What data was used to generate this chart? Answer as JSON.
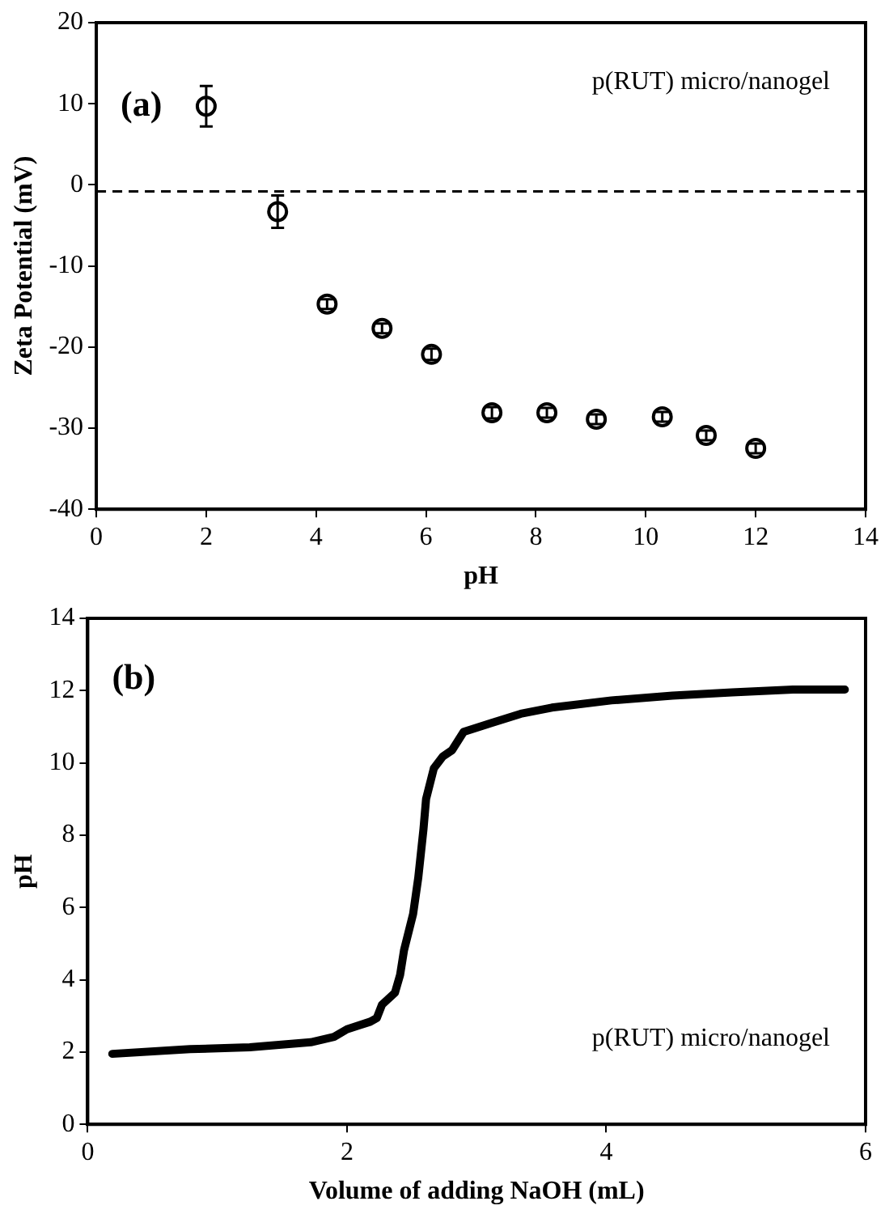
{
  "chart_data": [
    {
      "type": "scatter",
      "xlabel": "pH",
      "ylabel": "Zeta Potential (mV)",
      "xlim": [
        0,
        14
      ],
      "ylim": [
        -40,
        20
      ],
      "xticks": [
        0,
        2,
        4,
        6,
        8,
        10,
        12,
        14
      ],
      "yticks": [
        -40,
        -30,
        -20,
        -10,
        0,
        10,
        20
      ],
      "grid": false,
      "legend": false,
      "marker": "circle",
      "series": [
        {
          "color": "#000000",
          "x": [
            2.0,
            3.3,
            4.2,
            5.2,
            6.1,
            7.2,
            8.2,
            9.1,
            10.3,
            11.1,
            12.0
          ],
          "values": [
            9.7,
            -3.3,
            -14.7,
            -17.7,
            -20.9,
            -28.1,
            -28.1,
            -28.9,
            -28.6,
            -30.9,
            -32.5
          ],
          "errors": [
            2.5,
            2.0,
            0.6,
            0.6,
            0.7,
            0.7,
            0.6,
            0.6,
            0.6,
            0.6,
            0.6
          ]
        }
      ],
      "ref_lines": [
        {
          "axis": "y",
          "value": -0.8,
          "line_style": "dashed",
          "color": "#000000"
        }
      ],
      "annotations": [
        "(a)",
        "p(RUT) micro/nanogel"
      ]
    },
    {
      "type": "line",
      "xlabel": "Volume of adding NaOH (mL)",
      "ylabel": "pH",
      "xlim": [
        0,
        6
      ],
      "ylim": [
        0,
        14
      ],
      "xticks": [
        0,
        2,
        4,
        6
      ],
      "yticks": [
        0,
        2,
        4,
        6,
        8,
        10,
        12,
        14
      ],
      "grid": false,
      "legend": false,
      "marker": "none",
      "line_style": "solid",
      "series": [
        {
          "color": "#000000",
          "x": [
            0.19,
            0.79,
            1.25,
            1.72,
            1.9,
            2.0,
            2.18,
            2.23,
            2.27,
            2.37,
            2.41,
            2.44,
            2.51,
            2.55,
            2.59,
            2.61,
            2.67,
            2.74,
            2.81,
            2.9,
            3.11,
            3.34,
            3.58,
            4.04,
            4.51,
            4.97,
            5.44,
            5.84
          ],
          "values": [
            1.95,
            2.08,
            2.13,
            2.27,
            2.42,
            2.63,
            2.84,
            2.94,
            3.31,
            3.64,
            4.14,
            4.82,
            5.82,
            6.83,
            8.17,
            9.0,
            9.85,
            10.18,
            10.35,
            10.86,
            11.1,
            11.36,
            11.53,
            11.73,
            11.86,
            11.95,
            12.03,
            12.03
          ]
        }
      ],
      "annotations": [
        "(b)",
        "p(RUT) micro/nanogel"
      ]
    }
  ]
}
